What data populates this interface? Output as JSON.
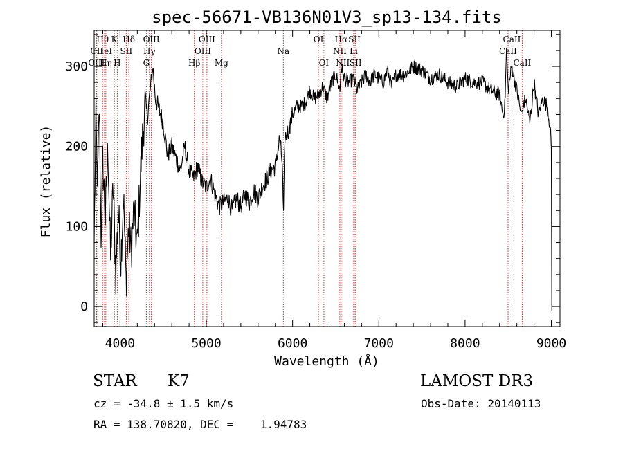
{
  "chart_data": {
    "type": "line",
    "title": "spec-56671-VB136N01V3_sp13-134.fits",
    "xlabel": "Wavelength (Å)",
    "ylabel": "Flux (relative)",
    "xlim": [
      3700,
      9100
    ],
    "ylim": [
      -25,
      345
    ],
    "xticks": [
      4000,
      5000,
      6000,
      7000,
      8000,
      9000
    ],
    "yticks": [
      0,
      100,
      200,
      300
    ],
    "series": [
      {
        "name": "spectrum",
        "x": [
          3700,
          3720,
          3740,
          3760,
          3780,
          3800,
          3830,
          3860,
          3890,
          3920,
          3950,
          3980,
          4010,
          4040,
          4070,
          4100,
          4130,
          4160,
          4200,
          4230,
          4260,
          4290,
          4320,
          4350,
          4380,
          4410,
          4440,
          4470,
          4500,
          4550,
          4600,
          4650,
          4700,
          4750,
          4800,
          4850,
          4900,
          4950,
          5000,
          5050,
          5100,
          5150,
          5200,
          5250,
          5300,
          5350,
          5400,
          5450,
          5500,
          5550,
          5600,
          5650,
          5700,
          5750,
          5800,
          5850,
          5880,
          5895,
          5910,
          5950,
          6000,
          6050,
          6100,
          6150,
          6200,
          6250,
          6300,
          6350,
          6400,
          6450,
          6500,
          6550,
          6562,
          6600,
          6650,
          6700,
          6750,
          6800,
          6850,
          6900,
          6950,
          7000,
          7050,
          7100,
          7150,
          7200,
          7300,
          7400,
          7500,
          7600,
          7700,
          7800,
          7900,
          8000,
          8100,
          8200,
          8300,
          8400,
          8440,
          8460,
          8480,
          8500,
          8540,
          8560,
          8600,
          8650,
          8700,
          8750,
          8800,
          8850,
          8900,
          8950,
          8980,
          9000,
          9005
        ],
        "values": [
          80,
          230,
          150,
          250,
          90,
          180,
          110,
          200,
          60,
          150,
          40,
          120,
          60,
          140,
          30,
          100,
          70,
          120,
          75,
          150,
          210,
          250,
          240,
          270,
          300,
          260,
          250,
          240,
          230,
          190,
          200,
          185,
          170,
          200,
          170,
          160,
          175,
          155,
          150,
          160,
          140,
          125,
          130,
          135,
          120,
          135,
          125,
          140,
          130,
          145,
          135,
          150,
          160,
          170,
          175,
          210,
          180,
          110,
          210,
          220,
          240,
          250,
          250,
          255,
          270,
          260,
          265,
          275,
          260,
          280,
          290,
          270,
          300,
          285,
          280,
          285,
          270,
          280,
          290,
          280,
          290,
          285,
          280,
          295,
          275,
          290,
          290,
          300,
          295,
          285,
          290,
          280,
          275,
          285,
          280,
          280,
          270,
          265,
          240,
          250,
          320,
          270,
          300,
          290,
          270,
          240,
          260,
          230,
          280,
          240,
          260,
          250,
          230,
          200,
          -5
        ]
      }
    ],
    "line_markers": [
      {
        "label": "Hθ",
        "x": 3798,
        "row": 0
      },
      {
        "label": "OIII",
        "x": 3727,
        "row": 2
      },
      {
        "label": "CII",
        "x": 3730,
        "row": 1
      },
      {
        "label": "HeI",
        "x": 3820,
        "row": 1
      },
      {
        "label": "Hη",
        "x": 3835,
        "row": 2
      },
      {
        "label": "K",
        "x": 3934,
        "row": 0
      },
      {
        "label": "H",
        "x": 3968,
        "row": 2
      },
      {
        "label": "SII",
        "x": 4072,
        "row": 1
      },
      {
        "label": "Hδ",
        "x": 4102,
        "row": 0
      },
      {
        "label": "G",
        "x": 4305,
        "row": 2
      },
      {
        "label": "Hγ",
        "x": 4340,
        "row": 1
      },
      {
        "label": "OIII",
        "x": 4363,
        "row": 0
      },
      {
        "label": "Hβ",
        "x": 4861,
        "row": 2
      },
      {
        "label": "OIII",
        "x": 4959,
        "row": 1
      },
      {
        "label": "OIII",
        "x": 5007,
        "row": 0
      },
      {
        "label": "Mg",
        "x": 5175,
        "row": 2
      },
      {
        "label": "Na",
        "x": 5893,
        "row": 1
      },
      {
        "label": "OI",
        "x": 6300,
        "row": 0
      },
      {
        "label": "OI",
        "x": 6363,
        "row": 2
      },
      {
        "label": "NII",
        "x": 6548,
        "row": 1
      },
      {
        "label": "Hα",
        "x": 6563,
        "row": 0
      },
      {
        "label": "NII",
        "x": 6583,
        "row": 2
      },
      {
        "label": "Li",
        "x": 6708,
        "row": 1
      },
      {
        "label": "SII",
        "x": 6717,
        "row": 0
      },
      {
        "label": "SII",
        "x": 6731,
        "row": 2
      },
      {
        "label": "CaII",
        "x": 8498,
        "row": 1
      },
      {
        "label": "CaII",
        "x": 8542,
        "row": 0
      },
      {
        "label": "CaII",
        "x": 8662,
        "row": 2
      }
    ]
  },
  "info": {
    "object_class": "STAR",
    "subclass": "K7",
    "survey": "LAMOST DR3",
    "velocity": "cz = -34.8 ± 1.5 km/s",
    "obs_date": "Obs-Date: 20140113",
    "coords": "RA = 138.70820, DEC =    1.94783"
  },
  "colors": {
    "marker_line": "#cc3333",
    "spectrum": "#000000"
  }
}
